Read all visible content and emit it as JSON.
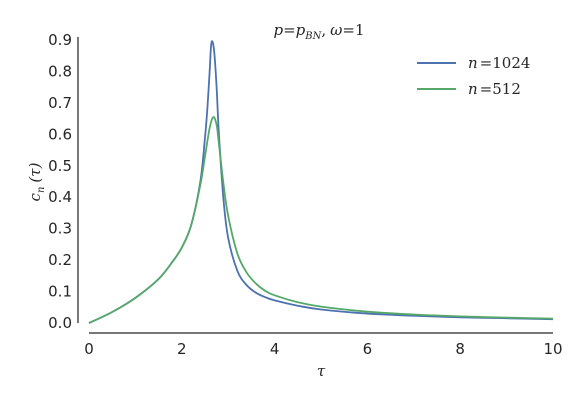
{
  "chart_data": {
    "type": "line",
    "title": "p=p_BN, ω=1",
    "title_parts": {
      "lhs": "p",
      "eq": "=",
      "rhs": "p",
      "rhs_sub": "BN",
      "sep": ",",
      "omega": "ω",
      "omega_eq": "=1"
    },
    "xlabel": "τ",
    "ylabel": "c_n (τ)",
    "ylabel_parts": {
      "c": "c",
      "sub": "n",
      "arg": "(τ)"
    },
    "xlim": [
      0,
      10
    ],
    "ylim": [
      0,
      0.9
    ],
    "xticks": [
      0,
      2,
      4,
      6,
      8,
      10
    ],
    "xtick_labels": [
      "0",
      "2",
      "4",
      "6",
      "8",
      "10"
    ],
    "yticks": [
      0.0,
      0.1,
      0.2,
      0.3,
      0.4,
      0.5,
      0.6,
      0.7,
      0.8,
      0.9
    ],
    "ytick_labels": [
      "0.0",
      "0.1",
      "0.2",
      "0.3",
      "0.4",
      "0.5",
      "0.6",
      "0.7",
      "0.8",
      "0.9"
    ],
    "grid": false,
    "legend_position": "top-right",
    "series": [
      {
        "name": "n=1024",
        "legend_parts": {
          "var": "n",
          "eq": "=1024"
        },
        "color": "#4c72b0",
        "x": [
          0,
          0.5,
          1.0,
          1.5,
          1.8,
          2.0,
          2.2,
          2.4,
          2.5,
          2.55,
          2.6,
          2.63,
          2.66,
          2.7,
          2.75,
          2.8,
          2.9,
          3.0,
          3.2,
          3.4,
          3.6,
          3.8,
          4.0,
          4.5,
          5.0,
          6.0,
          7.0,
          8.0,
          9.0,
          10.0
        ],
        "y": [
          0.0,
          0.035,
          0.08,
          0.14,
          0.195,
          0.24,
          0.31,
          0.45,
          0.59,
          0.68,
          0.8,
          0.88,
          0.895,
          0.86,
          0.75,
          0.6,
          0.39,
          0.27,
          0.165,
          0.12,
          0.096,
          0.082,
          0.072,
          0.055,
          0.043,
          0.03,
          0.023,
          0.018,
          0.015,
          0.012
        ]
      },
      {
        "name": "n=512",
        "legend_parts": {
          "var": "n",
          "eq": "=512"
        },
        "color": "#55a868",
        "x": [
          0,
          0.5,
          1.0,
          1.5,
          1.8,
          2.0,
          2.2,
          2.4,
          2.5,
          2.6,
          2.68,
          2.75,
          2.8,
          2.9,
          3.0,
          3.2,
          3.4,
          3.6,
          3.8,
          4.0,
          4.5,
          5.0,
          6.0,
          7.0,
          8.0,
          9.0,
          10.0
        ],
        "y": [
          0.0,
          0.035,
          0.08,
          0.14,
          0.195,
          0.24,
          0.31,
          0.44,
          0.53,
          0.62,
          0.655,
          0.63,
          0.57,
          0.44,
          0.34,
          0.22,
          0.16,
          0.125,
          0.102,
          0.088,
          0.066,
          0.052,
          0.036,
          0.027,
          0.021,
          0.017,
          0.014
        ]
      }
    ]
  }
}
